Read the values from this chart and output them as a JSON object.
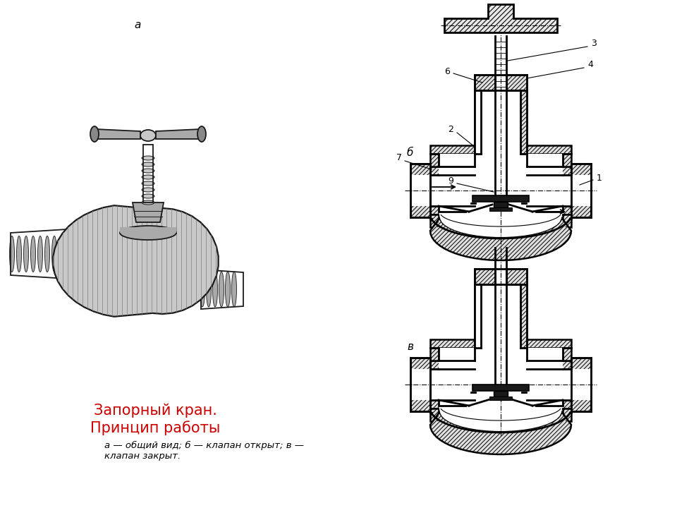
{
  "title_red": "Запорный кран.\nПринцип работы",
  "title_color": "#cc0000",
  "title_fontsize": 15,
  "caption_text": "а — общий вид; б — клапан открыт; в —\nклапан закрыт.",
  "caption_fontsize": 9.5,
  "label_a": "а",
  "label_b": "б",
  "label_v": "в",
  "bg_color": "#ffffff",
  "line_color": "#000000",
  "figure_width": 9.6,
  "figure_height": 7.2
}
